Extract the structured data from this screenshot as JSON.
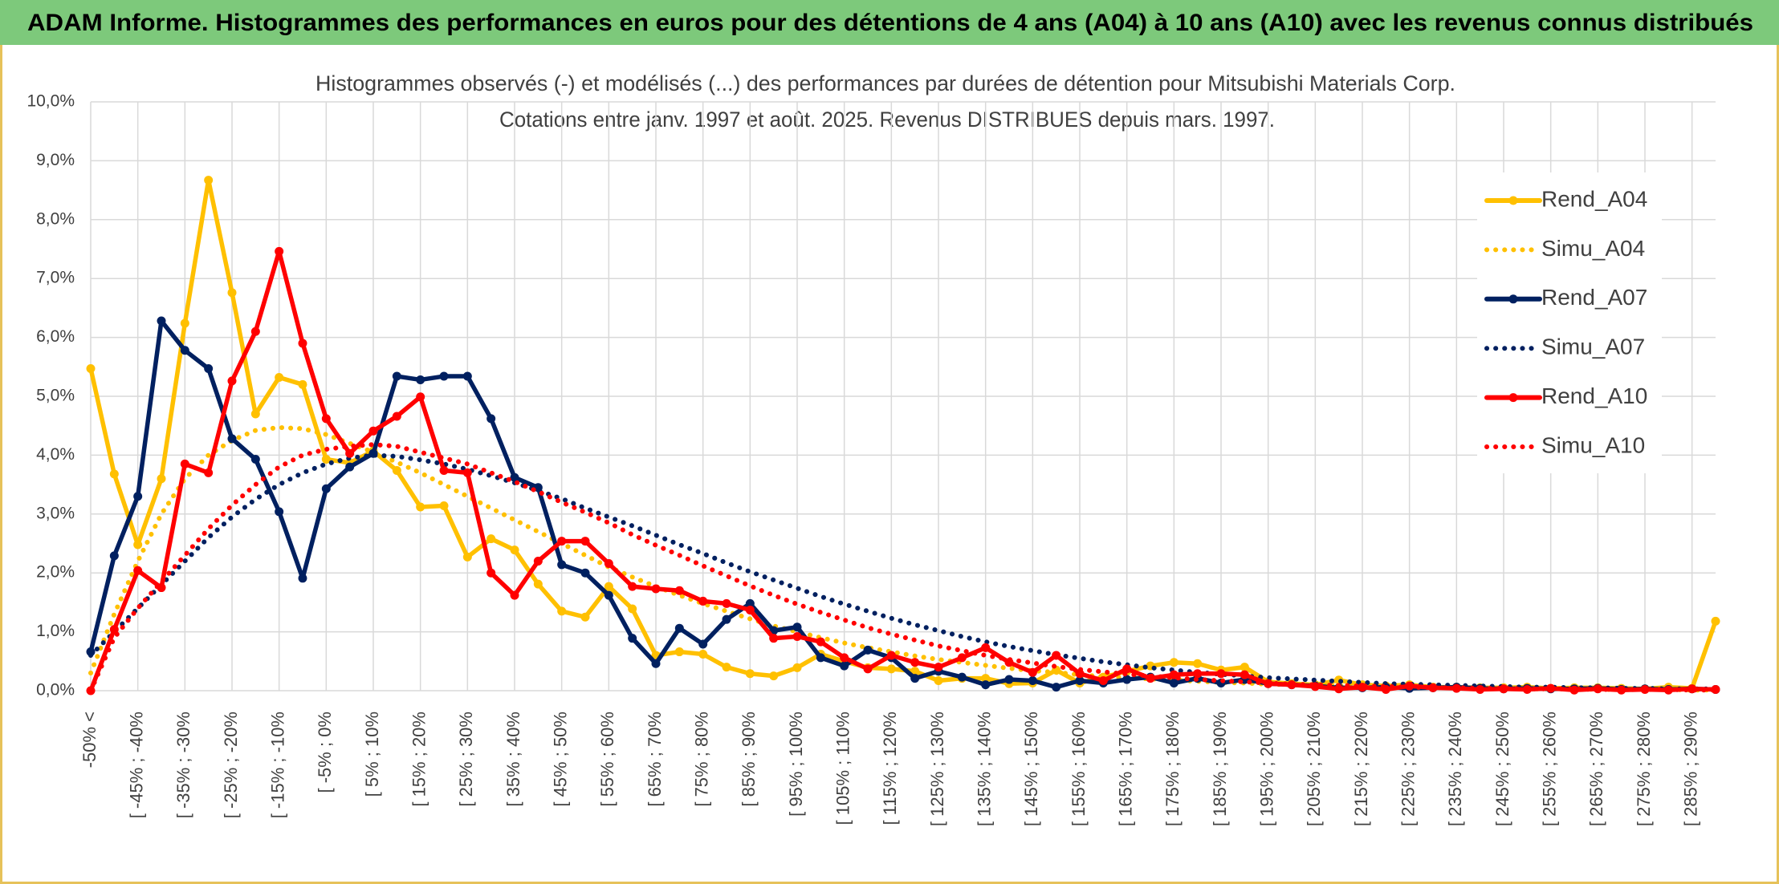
{
  "header": {
    "title": "ADAM Informe. Histogrammes des performances en euros pour des détentions de 4 ans (A04) à 10 ans (A10) avec les revenus connus distribués"
  },
  "chart_data": {
    "type": "line",
    "title": "Histogrammes observés (-) et modélisés (...) des performances par durées de détention pour Mitsubishi Materials Corp.",
    "subtitle": "Cotations entre janv. 1997 et août. 2025. Revenus DISTRIBUES depuis mars. 1997.",
    "categories": [
      "-50% <",
      null,
      "[ -45% ; -40%",
      null,
      "[ -35% ; -30%",
      null,
      "[ -25% ; -20%",
      null,
      "[ -15% ; -10%",
      null,
      "[ -5% ; 0%",
      null,
      "[ 5% ; 10%",
      null,
      "[ 15% ; 20%",
      null,
      "[ 25% ; 30%",
      null,
      "[ 35% ; 40%",
      null,
      "[ 45% ; 50%",
      null,
      "[ 55% ; 60%",
      null,
      "[ 65% ; 70%",
      null,
      "[ 75% ; 80%",
      null,
      "[ 85% ; 90%",
      null,
      "[ 95% ; 100%",
      null,
      "[ 105% ; 110%",
      null,
      "[ 115% ; 120%",
      null,
      "[ 125% ; 130%",
      null,
      "[ 135% ; 140%",
      null,
      "[ 145% ; 150%",
      null,
      "[ 155% ; 160%",
      null,
      "[ 165% ; 170%",
      null,
      "[ 175% ; 180%",
      null,
      "[ 185% ; 190%",
      null,
      "[ 195% ; 200%",
      null,
      "[ 205% ; 210%",
      null,
      "[ 215% ; 220%",
      null,
      "[ 225% ; 230%",
      null,
      "[ 235% ; 240%",
      null,
      "[ 245% ; 250%",
      null,
      "[ 255% ; 260%",
      null,
      "[ 265% ; 270%",
      null,
      "[ 275% ; 280%",
      null,
      "[ 285% ; 290%",
      null
    ],
    "series": [
      {
        "name": "Rend_A04",
        "color": "#FFC000",
        "style": "solid",
        "values": [
          5.47,
          3.68,
          2.48,
          3.6,
          6.24,
          8.67,
          6.76,
          4.7,
          5.32,
          5.2,
          3.93,
          3.87,
          4.07,
          3.74,
          3.12,
          3.14,
          2.27,
          2.58,
          2.39,
          1.81,
          1.35,
          1.25,
          1.77,
          1.39,
          0.6,
          0.66,
          0.62,
          0.4,
          0.29,
          0.25,
          0.39,
          0.62,
          0.5,
          0.39,
          0.37,
          0.33,
          0.17,
          0.21,
          0.21,
          0.12,
          0.13,
          0.35,
          0.13,
          0.23,
          0.33,
          0.42,
          0.48,
          0.46,
          0.35,
          0.4,
          0.15,
          0.12,
          0.1,
          0.18,
          0.1,
          0.08,
          0.1,
          0.06,
          0.06,
          0.05,
          0.05,
          0.06,
          0.04,
          0.05,
          0.05,
          0.04,
          0.03,
          0.06,
          0.04,
          1.18
        ]
      },
      {
        "name": "Simu_A04",
        "color": "#FFC000",
        "style": "dotted",
        "values": [
          0.3,
          1.3,
          2.2,
          3.0,
          3.6,
          4.0,
          4.25,
          4.42,
          4.47,
          4.45,
          4.35,
          4.2,
          4.05,
          3.88,
          3.7,
          3.5,
          3.3,
          3.1,
          2.9,
          2.7,
          2.5,
          2.3,
          2.1,
          1.93,
          1.77,
          1.62,
          1.48,
          1.35,
          1.22,
          1.1,
          1.0,
          0.9,
          0.81,
          0.73,
          0.66,
          0.59,
          0.53,
          0.48,
          0.43,
          0.38,
          0.34,
          0.31,
          0.27,
          0.24,
          0.22,
          0.2,
          0.18,
          0.16,
          0.14,
          0.13,
          0.11,
          0.1,
          0.09,
          0.08,
          0.07,
          0.06,
          0.06,
          0.05,
          0.05,
          0.04,
          0.04,
          0.03,
          0.03,
          0.03,
          0.02,
          0.02,
          0.02,
          0.02,
          0.01,
          0.01
        ]
      },
      {
        "name": "Rend_A07",
        "color": "#002060",
        "style": "solid",
        "values": [
          0.66,
          2.29,
          3.3,
          6.28,
          5.78,
          5.47,
          4.28,
          3.93,
          3.04,
          1.91,
          3.43,
          3.8,
          4.03,
          5.34,
          5.28,
          5.34,
          5.34,
          4.62,
          3.62,
          3.45,
          2.14,
          2.0,
          1.62,
          0.89,
          0.46,
          1.06,
          0.79,
          1.21,
          1.48,
          1.02,
          1.08,
          0.56,
          0.42,
          0.69,
          0.56,
          0.21,
          0.33,
          0.23,
          0.1,
          0.19,
          0.17,
          0.06,
          0.17,
          0.13,
          0.19,
          0.23,
          0.13,
          0.21,
          0.13,
          0.19,
          0.12,
          0.1,
          0.08,
          0.05,
          0.05,
          0.06,
          0.04,
          0.05,
          0.06,
          0.04,
          0.03,
          0.04,
          0.03,
          0.03,
          0.04,
          0.02,
          0.03,
          0.02,
          0.03,
          0.02
        ]
      },
      {
        "name": "Simu_A07",
        "color": "#002060",
        "style": "dotted",
        "values": [
          0.6,
          1.0,
          1.4,
          1.8,
          2.2,
          2.6,
          2.95,
          3.25,
          3.5,
          3.7,
          3.85,
          3.95,
          4.0,
          3.98,
          3.92,
          3.85,
          3.76,
          3.65,
          3.53,
          3.4,
          3.26,
          3.1,
          2.95,
          2.8,
          2.64,
          2.48,
          2.33,
          2.17,
          2.02,
          1.88,
          1.74,
          1.6,
          1.47,
          1.35,
          1.23,
          1.12,
          1.02,
          0.92,
          0.83,
          0.75,
          0.68,
          0.61,
          0.55,
          0.49,
          0.44,
          0.39,
          0.35,
          0.31,
          0.28,
          0.25,
          0.22,
          0.2,
          0.18,
          0.16,
          0.14,
          0.12,
          0.11,
          0.1,
          0.09,
          0.08,
          0.07,
          0.06,
          0.06,
          0.05,
          0.05,
          0.04,
          0.04,
          0.03,
          0.03,
          0.03
        ]
      },
      {
        "name": "Rend_A10",
        "color": "#FF0000",
        "style": "solid",
        "values": [
          0,
          1.04,
          2.04,
          1.75,
          3.85,
          3.7,
          5.26,
          6.1,
          7.46,
          5.9,
          4.62,
          4.03,
          4.41,
          4.66,
          4.99,
          3.74,
          3.7,
          2.0,
          1.62,
          2.2,
          2.54,
          2.54,
          2.16,
          1.77,
          1.73,
          1.7,
          1.52,
          1.48,
          1.37,
          0.89,
          0.92,
          0.83,
          0.56,
          0.37,
          0.6,
          0.48,
          0.4,
          0.56,
          0.73,
          0.48,
          0.31,
          0.6,
          0.29,
          0.17,
          0.37,
          0.21,
          0.27,
          0.29,
          0.29,
          0.27,
          0.12,
          0.1,
          0.07,
          0.03,
          0.06,
          0.02,
          0.08,
          0.05,
          0.04,
          0.02,
          0.03,
          0.02,
          0.04,
          0.01,
          0.03,
          0.01,
          0.02,
          0.01,
          0.03,
          0.02
        ]
      },
      {
        "name": "Simu_A10",
        "color": "#FF0000",
        "style": "dotted",
        "values": [
          0,
          0.9,
          1.4,
          1.85,
          2.3,
          2.75,
          3.15,
          3.5,
          3.8,
          4.0,
          4.1,
          4.15,
          4.18,
          4.15,
          4.05,
          3.95,
          3.85,
          3.7,
          3.55,
          3.38,
          3.2,
          3.03,
          2.85,
          2.65,
          2.47,
          2.3,
          2.12,
          1.95,
          1.78,
          1.62,
          1.47,
          1.33,
          1.2,
          1.07,
          0.96,
          0.86,
          0.76,
          0.68,
          0.6,
          0.53,
          0.47,
          0.41,
          0.36,
          0.32,
          0.28,
          0.25,
          0.22,
          0.19,
          0.17,
          0.15,
          0.13,
          0.11,
          0.1,
          0.09,
          0.08,
          0.07,
          0.06,
          0.05,
          0.05,
          0.04,
          0.04,
          0.03,
          0.03,
          0.03,
          0.02,
          0.02,
          0.02,
          0.02,
          0.01,
          0.01
        ]
      }
    ],
    "ylim": [
      0,
      10
    ],
    "yticks": [
      {
        "value": 0,
        "label": "0,0%"
      },
      {
        "value": 1,
        "label": "1,0%"
      },
      {
        "value": 2,
        "label": "2,0%"
      },
      {
        "value": 3,
        "label": "3,0%"
      },
      {
        "value": 4,
        "label": "4,0%"
      },
      {
        "value": 5,
        "label": "5,0%"
      },
      {
        "value": 6,
        "label": "6,0%"
      },
      {
        "value": 7,
        "label": "7,0%"
      },
      {
        "value": 8,
        "label": "8,0%"
      },
      {
        "value": 9,
        "label": "9,0%"
      },
      {
        "value": 10,
        "label": "10,0%"
      }
    ],
    "grid": true,
    "legend": "right"
  }
}
